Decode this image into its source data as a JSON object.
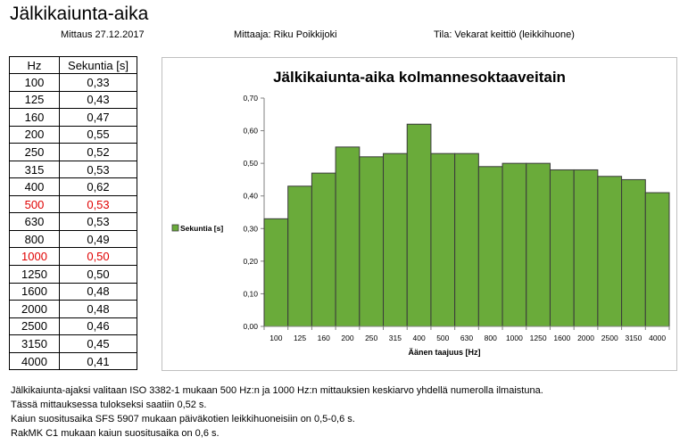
{
  "title": "Jälkikaiunta-aika",
  "meta": {
    "date": "Mittaus 27.12.2017",
    "measurer": "Mittaaja: Riku Poikkijoki",
    "room": "Tila: Vekarat keittiö (leikkihuone)"
  },
  "table": {
    "headers": [
      "Hz",
      "Sekuntia [s]"
    ],
    "rows": [
      {
        "hz": "100",
        "s": "0,33"
      },
      {
        "hz": "125",
        "s": "0,43"
      },
      {
        "hz": "160",
        "s": "0,47"
      },
      {
        "hz": "200",
        "s": "0,55"
      },
      {
        "hz": "250",
        "s": "0,52"
      },
      {
        "hz": "315",
        "s": "0,53"
      },
      {
        "hz": "400",
        "s": "0,62"
      },
      {
        "hz": "500",
        "s": "0,53",
        "highlight": true
      },
      {
        "hz": "630",
        "s": "0,53"
      },
      {
        "hz": "800",
        "s": "0,49"
      },
      {
        "hz": "1000",
        "s": "0,50",
        "highlight": true
      },
      {
        "hz": "1250",
        "s": "0,50"
      },
      {
        "hz": "1600",
        "s": "0,48"
      },
      {
        "hz": "2000",
        "s": "0,48"
      },
      {
        "hz": "2500",
        "s": "0,46"
      },
      {
        "hz": "3150",
        "s": "0,45"
      },
      {
        "hz": "4000",
        "s": "0,41"
      }
    ],
    "highlight_color": "#e00000"
  },
  "chart_data": {
    "type": "bar",
    "title": "Jälkikaiunta-aika kolmannesoktaaveitain",
    "xlabel": "Äänen taajuus [Hz]",
    "ylabel": "",
    "categories": [
      "100",
      "125",
      "160",
      "200",
      "250",
      "315",
      "400",
      "500",
      "630",
      "800",
      "1000",
      "1250",
      "1600",
      "2000",
      "2500",
      "3150",
      "4000"
    ],
    "series": [
      {
        "name": "Sekuntia [s]",
        "values": [
          0.33,
          0.43,
          0.47,
          0.55,
          0.52,
          0.53,
          0.62,
          0.53,
          0.53,
          0.49,
          0.5,
          0.5,
          0.48,
          0.48,
          0.46,
          0.45,
          0.41
        ]
      }
    ],
    "ylim": [
      0,
      0.7
    ],
    "yticks": [
      "0,00",
      "0,10",
      "0,20",
      "0,30",
      "0,40",
      "0,50",
      "0,60",
      "0,70"
    ],
    "grid": false,
    "legend": "left",
    "bar_color": "#6aab3a",
    "bar_edge": "#3a3a3a"
  },
  "notes": [
    "Jälkikaiunta-ajaksi valitaan ISO 3382-1 mukaan 500 Hz:n ja 1000 Hz:n mittauksien keskiarvo yhdellä numerolla ilmaistuna.",
    "Tässä mittauksessa tulokseksi saatiin  0,52 s.",
    "Kaiun suositusaika SFS 5907 mukaan päiväkotien leikkihuoneisiin on 0,5-0,6 s.",
    "RakMK C1 mukaan kaiun suositusaika on 0,6 s."
  ]
}
